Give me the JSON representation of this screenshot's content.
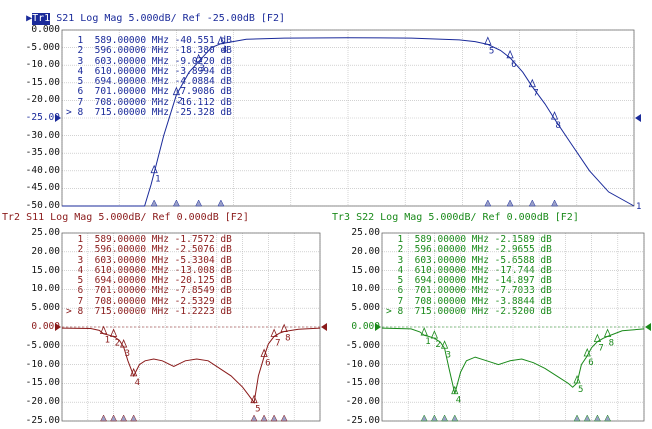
{
  "traces": [
    {
      "id": "tr1",
      "badge": "Tr1",
      "title": " S21 Log Mag 5.000dB/ Ref -25.00dB [F2]",
      "color": "#1a2a9a",
      "yticks": [
        "0.000",
        "-5.000",
        "-10.00",
        "-15.00",
        "-20.00",
        "-25.00",
        "-30.00",
        "-35.00",
        "-40.00",
        "-45.00",
        "-50.00"
      ],
      "ref_label": "-25.00",
      "ymin": -50,
      "ymax": 0,
      "xmin": 560,
      "xmax": 740,
      "end_marker_label": "1",
      "markers": [
        {
          "num": "1",
          "sel": " ",
          "freq": "589.00000",
          "unit": "MHz",
          "value": "-40.551",
          "vunit": "dB"
        },
        {
          "num": "2",
          "sel": " ",
          "freq": "596.00000",
          "unit": "MHz",
          "value": "-18.380",
          "vunit": "dB"
        },
        {
          "num": "3",
          "sel": " ",
          "freq": "603.00000",
          "unit": "MHz",
          "value": "-9.0220",
          "vunit": "dB"
        },
        {
          "num": "4",
          "sel": " ",
          "freq": "610.00000",
          "unit": "MHz",
          "value": "-3.8994",
          "vunit": "dB"
        },
        {
          "num": "5",
          "sel": " ",
          "freq": "694.00000",
          "unit": "MHz",
          "value": "-4.0884",
          "vunit": "dB"
        },
        {
          "num": "6",
          "sel": " ",
          "freq": "701.00000",
          "unit": "MHz",
          "value": "-7.9086",
          "vunit": "dB"
        },
        {
          "num": "7",
          "sel": " ",
          "freq": "708.00000",
          "unit": "MHz",
          "value": "-16.112",
          "vunit": "dB"
        },
        {
          "num": "8",
          "sel": ">",
          "freq": "715.00000",
          "unit": "MHz",
          "value": "-25.328",
          "vunit": "dB"
        }
      ],
      "curve": [
        [
          560,
          -50
        ],
        [
          586,
          -50
        ],
        [
          588,
          -44
        ],
        [
          589,
          -40.5
        ],
        [
          592,
          -30
        ],
        [
          596,
          -18.4
        ],
        [
          600,
          -12
        ],
        [
          603,
          -9
        ],
        [
          607,
          -5
        ],
        [
          610,
          -3.9
        ],
        [
          618,
          -2.6
        ],
        [
          630,
          -2.3
        ],
        [
          650,
          -2.2
        ],
        [
          670,
          -2.3
        ],
        [
          685,
          -2.8
        ],
        [
          690,
          -3.3
        ],
        [
          694,
          -4.1
        ],
        [
          698,
          -5.8
        ],
        [
          701,
          -7.9
        ],
        [
          705,
          -12
        ],
        [
          708,
          -16.1
        ],
        [
          712,
          -21
        ],
        [
          715,
          -25.3
        ],
        [
          720,
          -32
        ],
        [
          726,
          -40
        ],
        [
          732,
          -46
        ],
        [
          740,
          -50
        ]
      ]
    },
    {
      "id": "tr2",
      "badge": "Tr2",
      "title": "Tr2 S11 Log Mag 5.000dB/ Ref 0.000dB [F2]",
      "color": "#8a1a1a",
      "yticks": [
        "25.00",
        "20.00",
        "15.00",
        "10.00",
        "5.000",
        "0.000",
        "-5.000",
        "-10.00",
        "-15.00",
        "-20.00",
        "-25.00"
      ],
      "ref_label": "0.000",
      "ymin": -25,
      "ymax": 25,
      "xmin": 560,
      "xmax": 740,
      "markers": [
        {
          "num": "1",
          "sel": " ",
          "freq": "589.00000",
          "unit": "MHz",
          "value": "-1.7572",
          "vunit": "dB"
        },
        {
          "num": "2",
          "sel": " ",
          "freq": "596.00000",
          "unit": "MHz",
          "value": "-2.5076",
          "vunit": "dB"
        },
        {
          "num": "3",
          "sel": " ",
          "freq": "603.00000",
          "unit": "MHz",
          "value": "-5.3304",
          "vunit": "dB"
        },
        {
          "num": "4",
          "sel": " ",
          "freq": "610.00000",
          "unit": "MHz",
          "value": "-13.008",
          "vunit": "dB"
        },
        {
          "num": "5",
          "sel": " ",
          "freq": "694.00000",
          "unit": "MHz",
          "value": "-20.125",
          "vunit": "dB"
        },
        {
          "num": "6",
          "sel": " ",
          "freq": "701.00000",
          "unit": "MHz",
          "value": "-7.8549",
          "vunit": "dB"
        },
        {
          "num": "7",
          "sel": " ",
          "freq": "708.00000",
          "unit": "MHz",
          "value": "-2.5329",
          "vunit": "dB"
        },
        {
          "num": "8",
          "sel": ">",
          "freq": "715.00000",
          "unit": "MHz",
          "value": "-1.2223",
          "vunit": "dB"
        }
      ],
      "curve": [
        [
          560,
          -0.3
        ],
        [
          580,
          -0.4
        ],
        [
          586,
          -0.9
        ],
        [
          589,
          -1.8
        ],
        [
          592,
          -2.1
        ],
        [
          596,
          -2.5
        ],
        [
          600,
          -3.5
        ],
        [
          603,
          -5.3
        ],
        [
          606,
          -9
        ],
        [
          610,
          -13
        ],
        [
          614,
          -10
        ],
        [
          618,
          -9
        ],
        [
          624,
          -8.5
        ],
        [
          630,
          -9
        ],
        [
          638,
          -10.5
        ],
        [
          646,
          -9
        ],
        [
          654,
          -8.5
        ],
        [
          662,
          -9
        ],
        [
          670,
          -11
        ],
        [
          678,
          -13
        ],
        [
          686,
          -16
        ],
        [
          690,
          -18
        ],
        [
          694,
          -20.1
        ],
        [
          697,
          -13
        ],
        [
          701,
          -7.9
        ],
        [
          704,
          -4.5
        ],
        [
          708,
          -2.5
        ],
        [
          712,
          -1.6
        ],
        [
          715,
          -1.2
        ],
        [
          725,
          -0.6
        ],
        [
          740,
          -0.3
        ]
      ]
    },
    {
      "id": "tr3",
      "badge": "Tr3",
      "title": "Tr3 S22 Log Mag 5.000dB/ Ref 0.000dB [F2]",
      "color": "#1a8a1a",
      "yticks": [
        "25.00",
        "20.00",
        "15.00",
        "10.00",
        "5.000",
        "0.000",
        "-5.000",
        "-10.00",
        "-15.00",
        "-20.00",
        "-25.00"
      ],
      "ref_label": "0.000",
      "ymin": -25,
      "ymax": 25,
      "xmin": 560,
      "xmax": 740,
      "markers": [
        {
          "num": "1",
          "sel": " ",
          "freq": "589.00000",
          "unit": "MHz",
          "value": "-2.1589",
          "vunit": "dB"
        },
        {
          "num": "2",
          "sel": " ",
          "freq": "596.00000",
          "unit": "MHz",
          "value": "-2.9655",
          "vunit": "dB"
        },
        {
          "num": "3",
          "sel": " ",
          "freq": "603.00000",
          "unit": "MHz",
          "value": "-5.6588",
          "vunit": "dB"
        },
        {
          "num": "4",
          "sel": " ",
          "freq": "610.00000",
          "unit": "MHz",
          "value": "-17.744",
          "vunit": "dB"
        },
        {
          "num": "5",
          "sel": " ",
          "freq": "694.00000",
          "unit": "MHz",
          "value": "-14.897",
          "vunit": "dB"
        },
        {
          "num": "6",
          "sel": " ",
          "freq": "701.00000",
          "unit": "MHz",
          "value": "-7.7033",
          "vunit": "dB"
        },
        {
          "num": "7",
          "sel": " ",
          "freq": "708.00000",
          "unit": "MHz",
          "value": "-3.8844",
          "vunit": "dB"
        },
        {
          "num": "8",
          "sel": ">",
          "freq": "715.00000",
          "unit": "MHz",
          "value": "-2.5200",
          "vunit": "dB"
        }
      ],
      "curve": [
        [
          560,
          -0.3
        ],
        [
          580,
          -0.5
        ],
        [
          586,
          -1.3
        ],
        [
          589,
          -2.2
        ],
        [
          592,
          -2.5
        ],
        [
          596,
          -3
        ],
        [
          600,
          -4
        ],
        [
          603,
          -5.7
        ],
        [
          606,
          -11
        ],
        [
          610,
          -17.7
        ],
        [
          614,
          -12
        ],
        [
          618,
          -9
        ],
        [
          624,
          -8
        ],
        [
          632,
          -9
        ],
        [
          640,
          -10
        ],
        [
          648,
          -9
        ],
        [
          656,
          -8.5
        ],
        [
          664,
          -9.5
        ],
        [
          672,
          -11
        ],
        [
          680,
          -13
        ],
        [
          688,
          -15
        ],
        [
          691,
          -16
        ],
        [
          694,
          -14.9
        ],
        [
          697,
          -10
        ],
        [
          701,
          -7.7
        ],
        [
          704,
          -5.5
        ],
        [
          708,
          -3.9
        ],
        [
          712,
          -3
        ],
        [
          715,
          -2.5
        ],
        [
          725,
          -1
        ],
        [
          740,
          -0.5
        ]
      ]
    }
  ]
}
